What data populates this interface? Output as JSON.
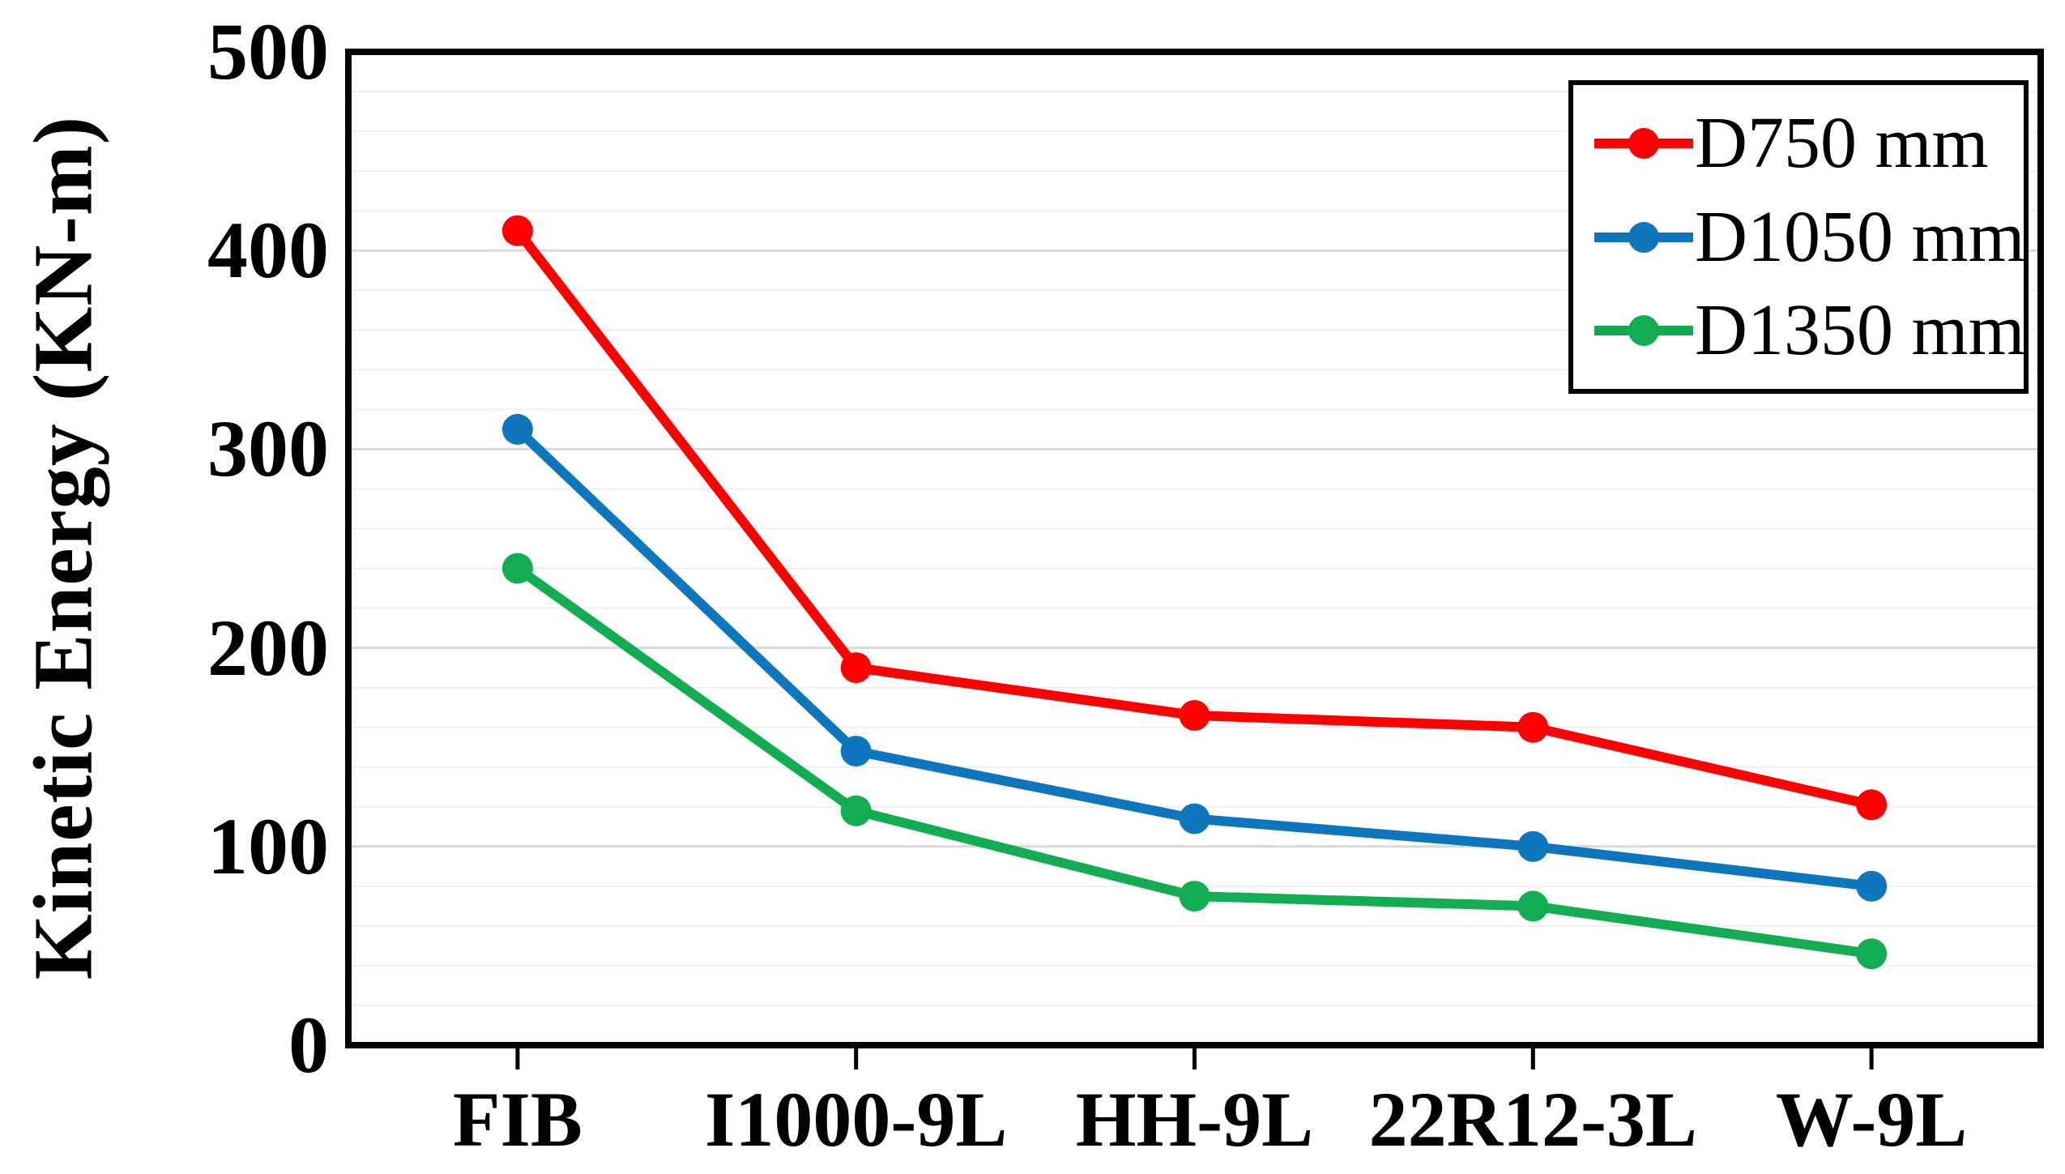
{
  "chart_data": {
    "type": "line",
    "title": "",
    "xlabel": "",
    "ylabel": "Kinetic Energy (KN-m)",
    "categories": [
      "FIB",
      "I1000-9L",
      "HH-9L",
      "22R12-3L",
      "W-9L"
    ],
    "series": [
      {
        "name": "D750 mm",
        "color": "#FF0000",
        "values": [
          410,
          190,
          166,
          160,
          121
        ]
      },
      {
        "name": "D1050 mm",
        "color": "#0E76BD",
        "values": [
          310,
          148,
          114,
          100,
          80
        ]
      },
      {
        "name": "D1350 mm",
        "color": "#12AD52",
        "values": [
          240,
          118,
          75,
          70,
          46
        ]
      }
    ],
    "ylim": [
      0,
      500
    ],
    "yticks": [
      0,
      100,
      200,
      300,
      400,
      500
    ],
    "y_minor_step": 20,
    "grid": "horizontal",
    "legend_position": "top-right",
    "marker": "circle"
  },
  "colors": {
    "background": "#FFFFFF",
    "axis": "#000000",
    "grid_minor": "#EFEFEF",
    "grid_major": "#D9D9D9",
    "text": "#000000"
  }
}
